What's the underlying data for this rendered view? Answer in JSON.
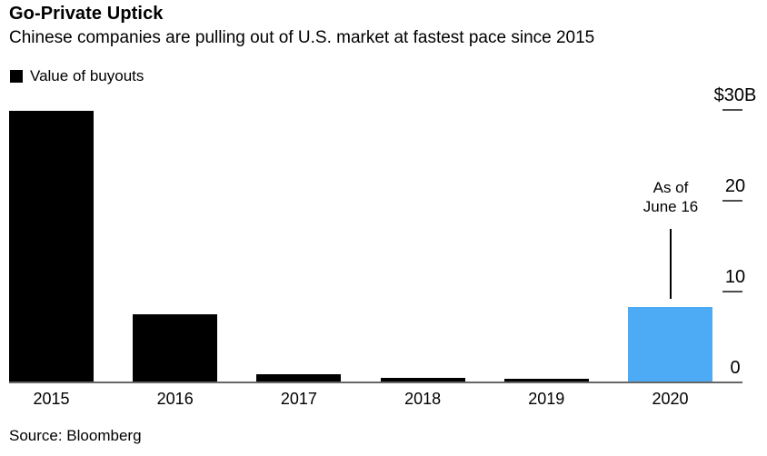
{
  "header": {
    "title": "Go-Private Uptick",
    "subtitle": "Chinese companies are pulling out of U.S. market at fastest pace since 2015"
  },
  "legend": {
    "label": "Value of buyouts",
    "swatch_color": "#000000"
  },
  "annotation": {
    "line1": "As of",
    "line2": "June 16",
    "target_category": "2020"
  },
  "source": "Source: Bloomberg",
  "colors": {
    "bar_default": "#000000",
    "bar_highlight": "#4DABF5",
    "axis_line": "#666666",
    "tick_dash": "#4d4d4d",
    "text": "#000000",
    "background": "#ffffff"
  },
  "chart_data": {
    "type": "bar",
    "title": "Go-Private Uptick",
    "subtitle": "Chinese companies are pulling out of U.S. market at fastest pace since 2015",
    "series_name": "Value of buyouts",
    "unit": "USD billions",
    "categories": [
      "2015",
      "2016",
      "2017",
      "2018",
      "2019",
      "2020"
    ],
    "values": [
      29.9,
      7.5,
      0.9,
      0.5,
      0.35,
      8.3
    ],
    "bar_colors": [
      "#000000",
      "#000000",
      "#000000",
      "#000000",
      "#000000",
      "#4DABF5"
    ],
    "ylim": [
      0,
      30
    ],
    "y_axis_side": "right",
    "y_ticks": [
      {
        "value": 30,
        "label": "$30B"
      },
      {
        "value": 20,
        "label": "20"
      },
      {
        "value": 10,
        "label": "10"
      },
      {
        "value": 0,
        "label": "0"
      }
    ],
    "grid": false,
    "legend_position": "top-left",
    "annotation": {
      "text": "As of June 16",
      "target_category": "2020"
    }
  }
}
